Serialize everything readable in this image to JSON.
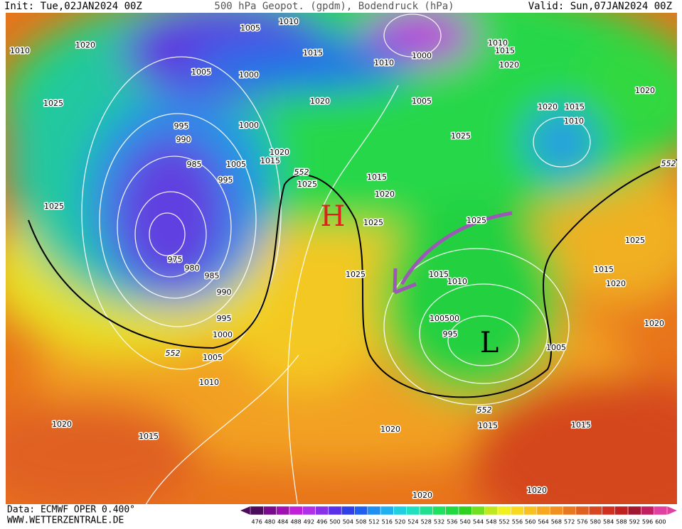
{
  "header": {
    "init": "Init: Tue,02JAN2024 00Z",
    "title": "500 hPa Geopot. (gpdm), Bodendruck (hPa)",
    "valid": "Valid: Sun,07JAN2024 00Z"
  },
  "map": {
    "high": "H",
    "low": "L",
    "isobar_labels": [
      "1005",
      "1010",
      "1010",
      "1020",
      "1005",
      "1000",
      "1015",
      "1010",
      "1000",
      "1010",
      "1015",
      "1020",
      "1025",
      "1020",
      "1005",
      "1020",
      "1015",
      "1010",
      "1020",
      "995",
      "990",
      "1000",
      "1025",
      "1020",
      "1015",
      "1005",
      "985",
      "995",
      "1025",
      "1015",
      "1020",
      "1025",
      "1025",
      "1025",
      "1025",
      "975",
      "980",
      "985",
      "1025",
      "1015",
      "1010",
      "1015",
      "1020",
      "990",
      "995",
      "1000",
      "1005",
      "1010",
      "100500",
      "995",
      "1005",
      "1020",
      "1020",
      "1015",
      "1020",
      "1015",
      "1015",
      "1020",
      "1020"
    ],
    "geopotential_labels": [
      "552",
      "552",
      "552",
      "552"
    ]
  },
  "footer": {
    "source": "Data: ECMWF OPER 0.400°",
    "site": "WWW.WETTERZENTRALE.DE"
  },
  "scale": {
    "labels": [
      476,
      480,
      484,
      488,
      492,
      496,
      500,
      504,
      508,
      512,
      516,
      520,
      524,
      528,
      532,
      536,
      540,
      544,
      548,
      552,
      556,
      560,
      564,
      568,
      572,
      576,
      580,
      584,
      588,
      592,
      596,
      600
    ]
  }
}
